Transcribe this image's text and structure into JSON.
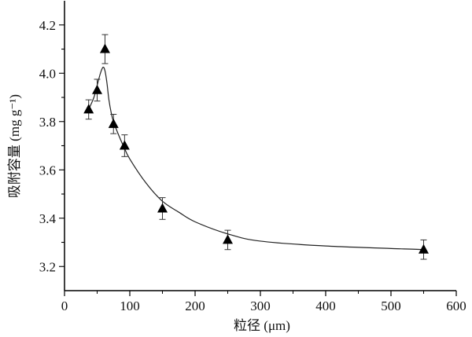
{
  "chart_data": {
    "type": "scatter",
    "title": "",
    "xlabel": "粒径 (μm)",
    "ylabel": "吸附容量 (mg g⁻¹)",
    "xlim": [
      0,
      600
    ],
    "ylim": [
      3.1,
      4.3
    ],
    "xticks": [
      0,
      100,
      200,
      300,
      400,
      500,
      600
    ],
    "yticks": [
      3.2,
      3.4,
      3.6,
      3.8,
      4.0,
      4.2
    ],
    "ytick_labels": [
      "3.2",
      "3.4",
      "3.6",
      "3.8",
      "4.0",
      "4.2"
    ],
    "grid": false,
    "marker": "filled-triangle",
    "color": "#000000",
    "points": [
      {
        "x": 37,
        "y": 3.85,
        "err": 0.04
      },
      {
        "x": 50,
        "y": 3.93,
        "err": 0.045
      },
      {
        "x": 62,
        "y": 4.1,
        "err": 0.06
      },
      {
        "x": 75,
        "y": 3.79,
        "err": 0.04
      },
      {
        "x": 92,
        "y": 3.7,
        "err": 0.045
      },
      {
        "x": 150,
        "y": 3.44,
        "err": 0.045
      },
      {
        "x": 250,
        "y": 3.31,
        "err": 0.04
      },
      {
        "x": 550,
        "y": 3.27,
        "err": 0.04
      }
    ],
    "fit_curve": [
      [
        37,
        3.85
      ],
      [
        45,
        3.9
      ],
      [
        50,
        3.95
      ],
      [
        55,
        4.0
      ],
      [
        59,
        4.025
      ],
      [
        62,
        4.01
      ],
      [
        65,
        3.96
      ],
      [
        68,
        3.89
      ],
      [
        72,
        3.83
      ],
      [
        75,
        3.8
      ],
      [
        82,
        3.75
      ],
      [
        90,
        3.7
      ],
      [
        100,
        3.645
      ],
      [
        125,
        3.545
      ],
      [
        150,
        3.47
      ],
      [
        175,
        3.425
      ],
      [
        200,
        3.385
      ],
      [
        250,
        3.335
      ],
      [
        300,
        3.305
      ],
      [
        400,
        3.285
      ],
      [
        550,
        3.27
      ]
    ]
  }
}
